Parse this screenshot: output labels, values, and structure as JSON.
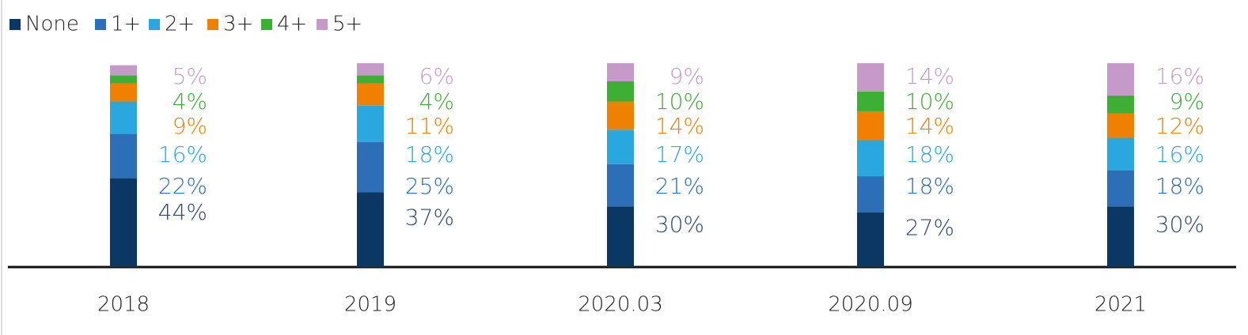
{
  "chart_data": {
    "type": "stacked_bar",
    "categories": [
      "2018",
      "2019",
      "2020.03",
      "2020.09",
      "2021"
    ],
    "series": [
      {
        "name": "None",
        "color": "#0b3764",
        "values": [
          44,
          37,
          30,
          27,
          30
        ],
        "value_labels": [
          "44%",
          "37%",
          "30%",
          "27%",
          "30%"
        ]
      },
      {
        "name": "1+",
        "color": "#2c6fb7",
        "values": [
          22,
          25,
          21,
          18,
          18
        ],
        "value_labels": [
          "22%",
          "25%",
          "21%",
          "18%",
          "18%"
        ]
      },
      {
        "name": "2+",
        "color": "#29a8e0",
        "values": [
          16,
          18,
          17,
          18,
          16
        ],
        "value_labels": [
          "16%",
          "18%",
          "17%",
          "18%",
          "16%"
        ]
      },
      {
        "name": "3+",
        "color": "#f08100",
        "values": [
          9,
          11,
          14,
          14,
          12
        ],
        "value_labels": [
          "9%",
          "11%",
          "14%",
          "14%",
          "12%"
        ]
      },
      {
        "name": "4+",
        "color": "#3daf35",
        "values": [
          4,
          4,
          10,
          10,
          9
        ],
        "value_labels": [
          "4%",
          "4%",
          "10%",
          "10%",
          "9%"
        ]
      },
      {
        "name": "5+",
        "color": "#c59ac8",
        "values": [
          5,
          6,
          9,
          14,
          16
        ],
        "value_labels": [
          "5%",
          "6%",
          "9%",
          "14%",
          "16%"
        ]
      }
    ]
  }
}
